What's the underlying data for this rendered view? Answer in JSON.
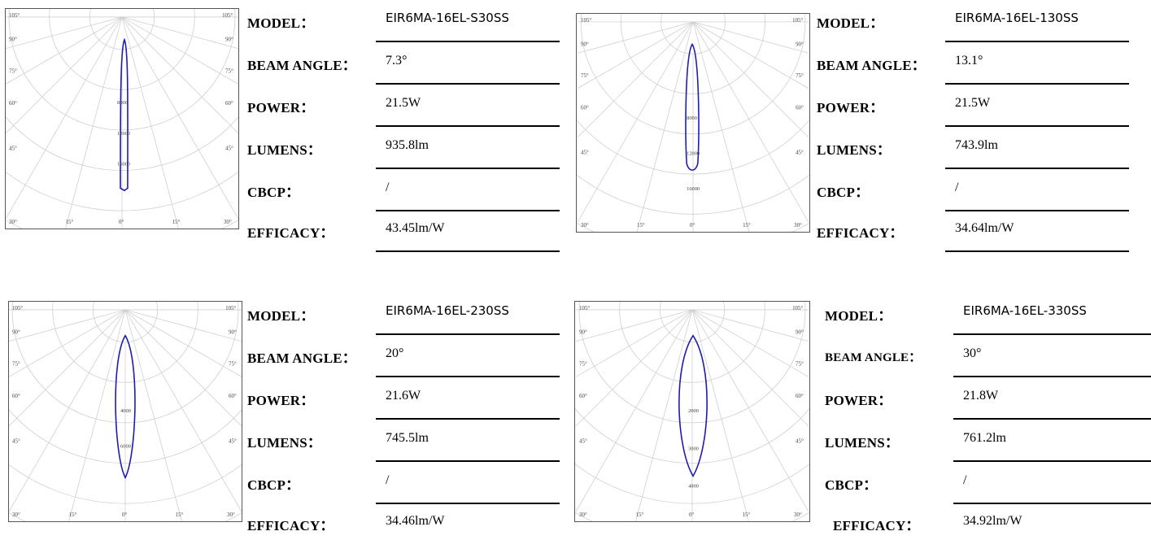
{
  "labels": {
    "model": "MODEL：",
    "beam_angle": "BEAM ANGLE：",
    "power": "POWER：",
    "lumens": "LUMENS：",
    "cbcp": "CBCP：",
    "efficacy": "EFFICACY："
  },
  "angle_labels": {
    "left": [
      "105°",
      "90°",
      "75°",
      "60°",
      "45°",
      "30°",
      "15°",
      "0°"
    ],
    "right": [
      "105°",
      "90°",
      "75°",
      "60°",
      "45°",
      "30°",
      "15°"
    ]
  },
  "curve_color": "#1b1bb0",
  "products": [
    {
      "model": "EIR6MA-16EL-S30SS",
      "beam_angle": "7.3°",
      "power": "21.5W",
      "lumens": "935.8lm",
      "cbcp": "/",
      "efficacy": "43.45lm/W",
      "ring_labels": [
        "8000",
        "12000",
        "16000"
      ]
    },
    {
      "model": "EIR6MA-16EL-130SS",
      "beam_angle": "13.1°",
      "power": "21.5W",
      "lumens": "743.9lm",
      "cbcp": "/",
      "efficacy": "34.64lm/W",
      "ring_labels": [
        "8000",
        "12000",
        "16000"
      ]
    },
    {
      "model": "EIR6MA-16EL-230SS",
      "beam_angle": "20°",
      "power": "21.6W",
      "lumens": "745.5lm",
      "cbcp": "/",
      "efficacy": "34.46lm/W",
      "ring_labels": [
        "4000",
        "6000"
      ]
    },
    {
      "model": "EIR6MA-16EL-330SS",
      "beam_angle": "30°",
      "power": "21.8W",
      "lumens": "761.2lm",
      "cbcp": "/",
      "efficacy": "34.92lm/W",
      "ring_labels": [
        "2000",
        "3000",
        "4000"
      ]
    }
  ]
}
